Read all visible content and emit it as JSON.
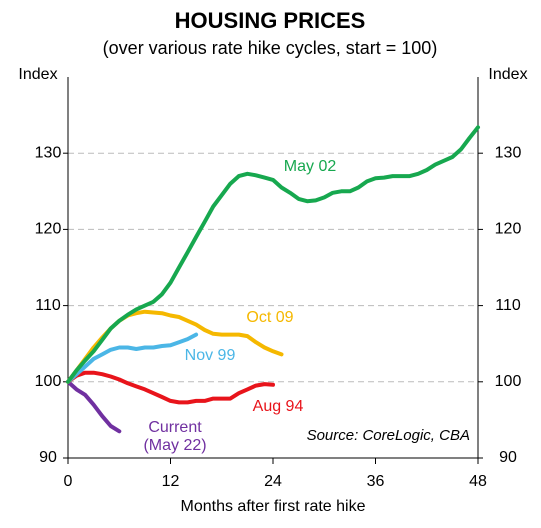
{
  "chart_data": {
    "type": "line",
    "title": "HOUSING PRICES",
    "subtitle": "(over various rate hike cycles, start = 100)",
    "x_label": "Months after first rate hike",
    "y_label": "Index",
    "y2_label": "Index",
    "annotation": "Source: CoreLogic, CBA",
    "x": [
      0,
      1,
      2,
      3,
      4,
      5,
      6,
      7,
      8,
      9,
      10,
      11,
      12,
      13,
      14,
      15,
      16,
      17,
      18,
      19,
      20,
      21,
      22,
      23,
      24,
      25,
      26,
      27,
      28,
      29,
      30,
      31,
      32,
      33,
      34,
      35,
      36,
      37,
      38,
      39,
      40,
      41,
      42,
      43,
      44,
      45,
      46,
      47,
      48
    ],
    "xlim": [
      0,
      48
    ],
    "xticks": [
      0,
      12,
      24,
      36,
      48
    ],
    "ylim": [
      90,
      140
    ],
    "yticks": [
      90,
      100,
      110,
      120,
      130
    ],
    "y2lim": [
      90,
      140
    ],
    "y2ticks": [
      90,
      100,
      110,
      120,
      130
    ],
    "grid": true,
    "series": [
      {
        "name": "May 02",
        "color": "#17a84f",
        "values": [
          100,
          101.5,
          102.8,
          104,
          105.5,
          107,
          108,
          108.8,
          109.5,
          110,
          110.5,
          111.5,
          113,
          115,
          117,
          119,
          121,
          123,
          124.5,
          126,
          127,
          127.3,
          127.1,
          126.8,
          126.5,
          125.5,
          124.8,
          124,
          123.7,
          123.8,
          124.2,
          124.8,
          125,
          125,
          125.5,
          126.3,
          126.7,
          126.8,
          127,
          127,
          127,
          127.3,
          127.8,
          128.5,
          129,
          129.5,
          130.5,
          132,
          133.4
        ]
      },
      {
        "name": "Oct 09",
        "color": "#f5b800",
        "values": [
          100,
          101.5,
          103,
          104.5,
          105.8,
          107,
          108,
          108.7,
          109,
          109.2,
          109.1,
          109,
          108.7,
          108.5,
          108,
          107.5,
          106.8,
          106.3,
          106.2,
          106.2,
          106.2,
          106,
          105.2,
          104.5,
          104,
          103.6,
          null,
          null,
          null,
          null,
          null,
          null,
          null,
          null,
          null,
          null,
          null,
          null,
          null,
          null,
          null,
          null,
          null,
          null,
          null,
          null,
          null,
          null,
          null
        ]
      },
      {
        "name": "Nov 99",
        "color": "#4bb6e6",
        "values": [
          100,
          101,
          102,
          103,
          103.6,
          104.2,
          104.5,
          104.5,
          104.3,
          104.5,
          104.5,
          104.7,
          104.8,
          105.2,
          105.6,
          106.2,
          null,
          null,
          null,
          null,
          null,
          null,
          null,
          null,
          null,
          null,
          null,
          null,
          null,
          null,
          null,
          null,
          null,
          null,
          null,
          null,
          null,
          null,
          null,
          null,
          null,
          null,
          null,
          null,
          null,
          null,
          null,
          null,
          null
        ]
      },
      {
        "name": "Aug 94",
        "color": "#e8141b",
        "values": [
          100,
          100.8,
          101.2,
          101.2,
          101,
          100.7,
          100.3,
          99.8,
          99.4,
          99,
          98.5,
          98,
          97.5,
          97.3,
          97.3,
          97.5,
          97.5,
          97.8,
          97.8,
          97.8,
          98.5,
          99,
          99.5,
          99.7,
          99.6,
          null,
          null,
          null,
          null,
          null,
          null,
          null,
          null,
          null,
          null,
          null,
          null,
          null,
          null,
          null,
          null,
          null,
          null,
          null,
          null,
          null,
          null,
          null,
          null
        ]
      },
      {
        "name": "Current (May 22)",
        "color": "#7030a0",
        "values": [
          100,
          99,
          98.3,
          97,
          95.5,
          94.2,
          93.5,
          null,
          null,
          null,
          null,
          null,
          null,
          null,
          null,
          null,
          null,
          null,
          null,
          null,
          null,
          null,
          null,
          null,
          null,
          null,
          null,
          null,
          null,
          null,
          null,
          null,
          null,
          null,
          null,
          null,
          null,
          null,
          null,
          null,
          null,
          null,
          null,
          null,
          null,
          null,
          null,
          null,
          null
        ]
      }
    ]
  }
}
